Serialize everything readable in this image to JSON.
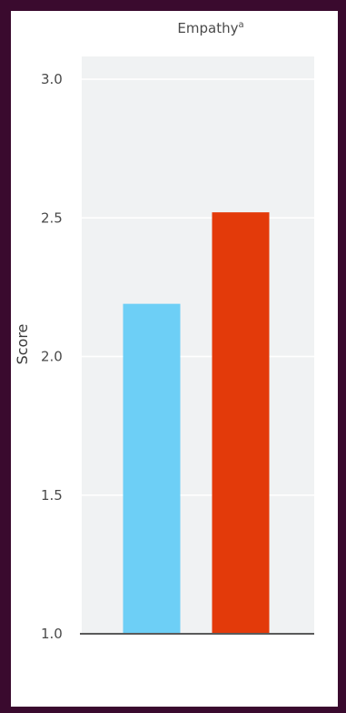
{
  "chart_data": {
    "type": "bar",
    "title": "Empathy",
    "title_superscript": "a",
    "xlabel": "",
    "ylabel": "Score",
    "ylim": [
      1.0,
      3.0
    ],
    "yticks": [
      "1.0",
      "1.5",
      "2.0",
      "2.5",
      "3.0"
    ],
    "categories": [
      "",
      ""
    ],
    "values": [
      2.19,
      2.52
    ],
    "colors": [
      "#6dcff6",
      "#e33a0a"
    ],
    "plot_background": "#f0f2f3",
    "grid": true
  }
}
